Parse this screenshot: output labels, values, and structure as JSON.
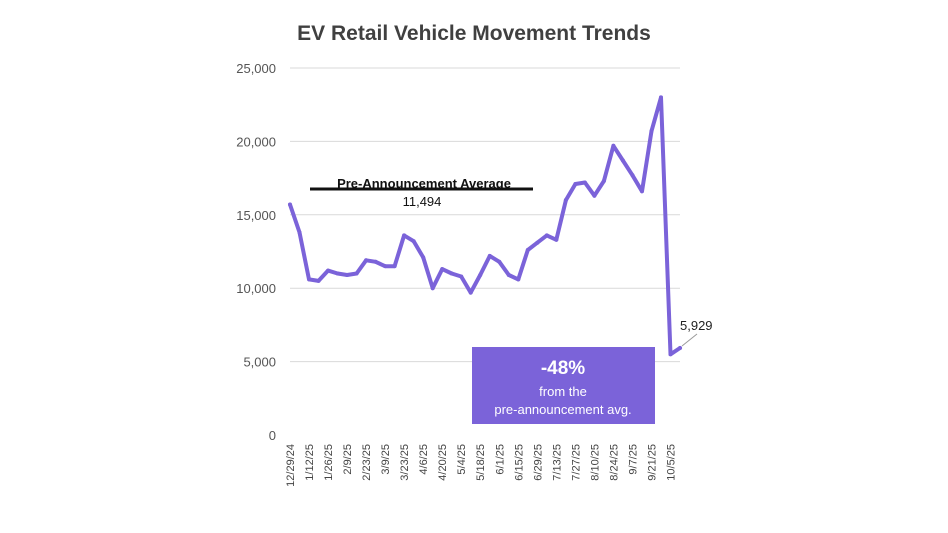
{
  "title": "EV Retail Vehicle Movement Trends",
  "colors": {
    "line": "#7B63D9",
    "callout_bg": "#7B63D9",
    "callout_text": "#ffffff",
    "gridline": "#d9d9d9",
    "average_line": "#111111"
  },
  "chart_data": {
    "type": "line",
    "title": "EV Retail Vehicle Movement Trends",
    "xlabel": "",
    "ylabel": "",
    "ylim": [
      0,
      25000
    ],
    "y_ticks": [
      0,
      5000,
      10000,
      15000,
      20000,
      25000
    ],
    "y_tick_labels": [
      "0",
      "5,000",
      "10,000",
      "15,000",
      "20,000",
      "25,000"
    ],
    "grid": true,
    "x": [
      "12/29/24",
      "1/5/25",
      "1/12/25",
      "1/19/25",
      "1/26/25",
      "2/2/25",
      "2/9/25",
      "2/16/25",
      "2/23/25",
      "3/2/25",
      "3/9/25",
      "3/16/25",
      "3/23/25",
      "3/30/25",
      "4/6/25",
      "4/13/25",
      "4/20/25",
      "4/27/25",
      "5/4/25",
      "5/11/25",
      "5/18/25",
      "5/25/25",
      "6/1/25",
      "6/8/25",
      "6/15/25",
      "6/22/25",
      "6/29/25",
      "7/6/25",
      "7/13/25",
      "7/20/25",
      "7/27/25",
      "8/3/25",
      "8/10/25",
      "8/17/25",
      "8/24/25",
      "8/31/25",
      "9/7/25",
      "9/14/25",
      "9/21/25",
      "9/28/25",
      "10/5/25",
      "10/12/25"
    ],
    "x_tick_labels": [
      "12/29/24",
      "1/12/25",
      "1/26/25",
      "2/9/25",
      "2/23/25",
      "3/9/25",
      "3/23/25",
      "4/6/25",
      "4/20/25",
      "5/4/25",
      "5/18/25",
      "6/1/25",
      "6/15/25",
      "6/29/25",
      "7/13/25",
      "7/27/25",
      "8/10/25",
      "8/24/25",
      "9/7/25",
      "9/21/25",
      "10/5/25"
    ],
    "series": [
      {
        "values": [
          15700,
          13800,
          10600,
          10500,
          11200,
          11000,
          10900,
          11000,
          11900,
          11800,
          11500,
          11500,
          13600,
          13200,
          12100,
          10000,
          11300,
          11000,
          10800,
          9700,
          10900,
          12200,
          11800,
          10900,
          10600,
          12600,
          13100,
          13600,
          13300,
          16000,
          17100,
          17200,
          16300,
          17300,
          19700,
          18700,
          17700,
          16600,
          20700,
          23000,
          5500,
          5929
        ]
      }
    ],
    "annotations": {
      "average_label": "Pre-Announcement Average",
      "average_value_label": "11,494",
      "last_point_label": "5,929",
      "callout_headline": "-48%",
      "callout_line1": "from the",
      "callout_line2": "pre-announcement avg."
    }
  }
}
